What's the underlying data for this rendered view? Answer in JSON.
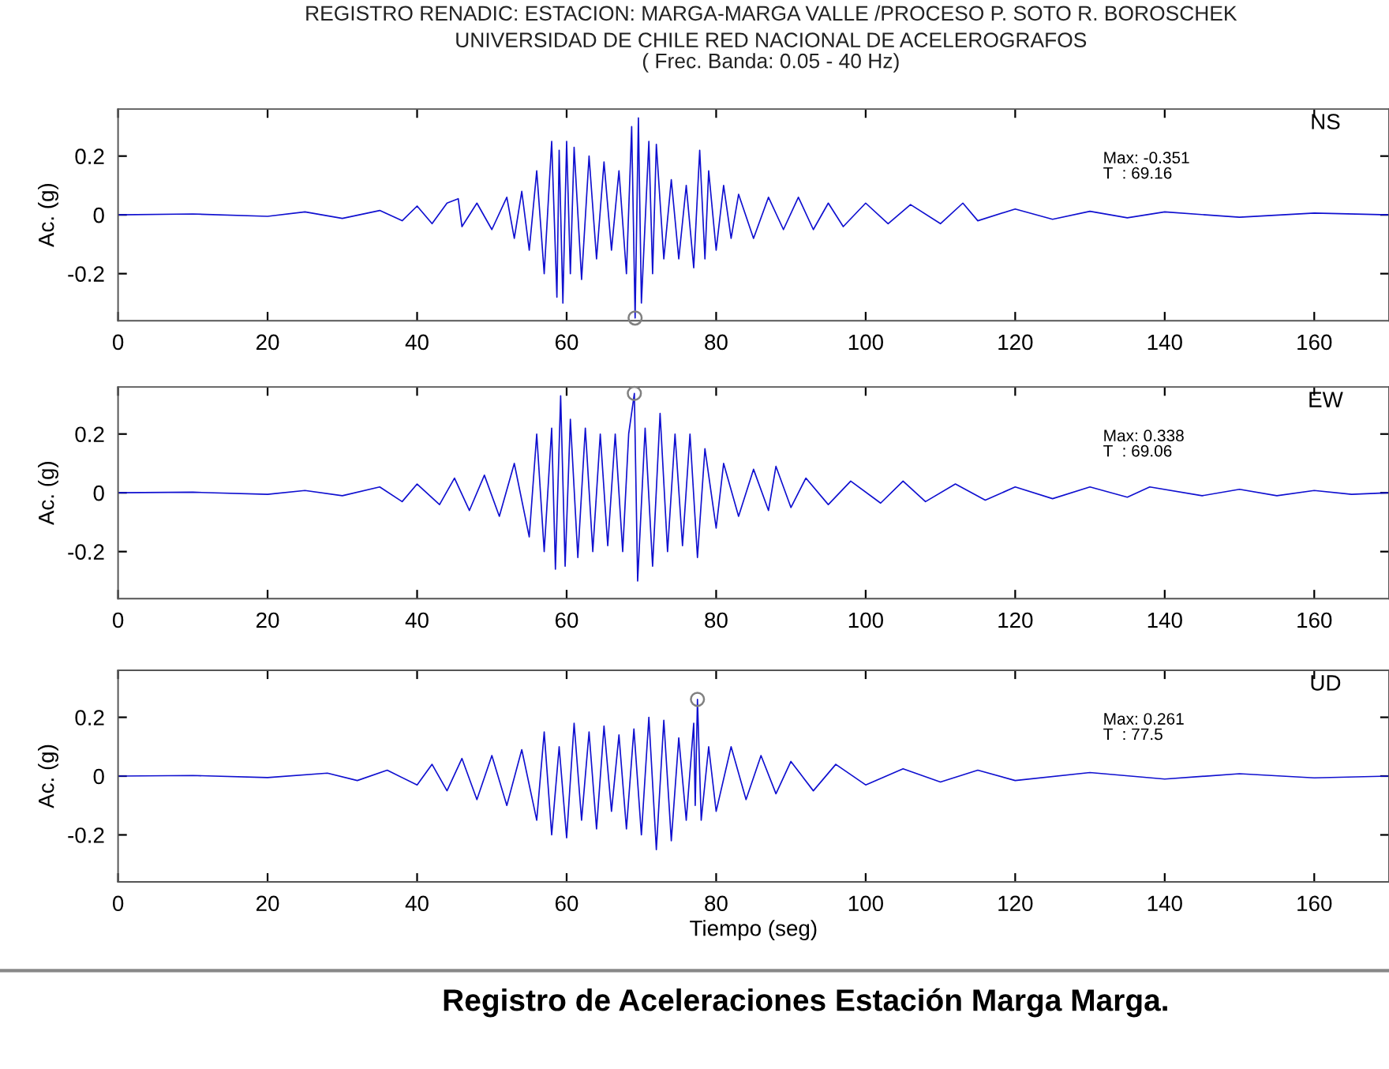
{
  "chart_data": [
    {
      "type": "line",
      "title": "REGISTRO RENADIC: ESTACION: MARGA-MARGA VALLE /PROCESO P. SOTO R. BOROSCHEK",
      "subtitle": "UNIVERSIDAD DE CHILE RED NACIONAL DE ACELEROGRAFOS\n( Frec. Banda: 0.05 - 40 Hz)",
      "ylabel": "Ac. (g)",
      "xlim": [
        0,
        170
      ],
      "ylim": [
        -0.36,
        0.36
      ],
      "xticks": [
        0,
        20,
        40,
        60,
        80,
        100,
        120,
        140,
        160
      ],
      "yticks": [
        -0.2,
        0,
        0.2
      ],
      "grid": false,
      "annotations": [
        "NS",
        "Max: -0.351\nT  : 69.16"
      ],
      "series": [
        {
          "color": "#1010d0",
          "x": [
            0,
            10,
            20,
            25,
            30,
            35,
            38,
            40,
            42,
            44,
            45.5,
            46,
            48,
            50,
            52,
            53,
            54,
            55,
            56,
            57,
            58,
            58.7,
            59,
            59.5,
            60,
            60.5,
            61,
            62,
            63,
            64,
            65,
            66,
            67,
            68,
            68.7,
            69.16,
            69.6,
            70,
            71,
            71.5,
            72,
            73,
            74,
            75,
            76,
            77,
            77.8,
            78.5,
            79,
            80,
            81,
            82,
            83,
            85,
            87,
            89,
            91,
            93,
            95,
            97,
            100,
            103,
            106,
            110,
            113,
            115,
            120,
            125,
            130,
            135,
            140,
            150,
            160,
            170
          ],
          "values": [
            0,
            0.003,
            -0.005,
            0.01,
            -0.012,
            0.015,
            -0.02,
            0.03,
            -0.03,
            0.04,
            0.055,
            -0.04,
            0.04,
            -0.05,
            0.06,
            -0.08,
            0.08,
            -0.12,
            0.15,
            -0.2,
            0.25,
            -0.28,
            0.22,
            -0.3,
            0.25,
            -0.2,
            0.23,
            -0.22,
            0.2,
            -0.15,
            0.18,
            -0.12,
            0.15,
            -0.2,
            0.3,
            -0.351,
            0.33,
            -0.3,
            0.25,
            -0.2,
            0.24,
            -0.15,
            0.12,
            -0.15,
            0.1,
            -0.18,
            0.22,
            -0.15,
            0.15,
            -0.12,
            0.1,
            -0.08,
            0.07,
            -0.08,
            0.06,
            -0.05,
            0.06,
            -0.05,
            0.04,
            -0.04,
            0.04,
            -0.03,
            0.035,
            -0.03,
            0.04,
            -0.02,
            0.02,
            -0.015,
            0.012,
            -0.01,
            0.01,
            -0.008,
            0.006,
            0
          ]
        },
        {
          "type": "scatter",
          "color": "#808080",
          "marker": "circle",
          "x": [
            69.16
          ],
          "values": [
            -0.351
          ]
        }
      ]
    },
    {
      "type": "line",
      "ylabel": "Ac. (g)",
      "xlim": [
        0,
        170
      ],
      "ylim": [
        -0.36,
        0.36
      ],
      "xticks": [
        0,
        20,
        40,
        60,
        80,
        100,
        120,
        140,
        160
      ],
      "yticks": [
        -0.2,
        0,
        0.2
      ],
      "grid": false,
      "annotations": [
        "EW",
        "Max: 0.338\nT  : 69.06"
      ],
      "series": [
        {
          "color": "#1010d0",
          "x": [
            0,
            10,
            20,
            25,
            30,
            35,
            38,
            40,
            43,
            45,
            47,
            49,
            51,
            53,
            55,
            56,
            57,
            58,
            58.5,
            59.2,
            59.8,
            60.5,
            61.5,
            62.5,
            63.5,
            64.5,
            65.5,
            66.5,
            67.5,
            68.3,
            69.06,
            69.5,
            70.5,
            71.5,
            72.5,
            73.5,
            74.5,
            75.5,
            76.5,
            77.5,
            78.5,
            80,
            81,
            83,
            85,
            87,
            88,
            90,
            92,
            95,
            98,
            102,
            105,
            108,
            112,
            116,
            120,
            125,
            130,
            135,
            138,
            145,
            150,
            155,
            160,
            165,
            170
          ],
          "values": [
            0,
            0.002,
            -0.005,
            0.008,
            -0.01,
            0.02,
            -0.03,
            0.03,
            -0.04,
            0.05,
            -0.06,
            0.06,
            -0.08,
            0.1,
            -0.15,
            0.2,
            -0.2,
            0.22,
            -0.26,
            0.33,
            -0.25,
            0.25,
            -0.22,
            0.22,
            -0.2,
            0.2,
            -0.18,
            0.2,
            -0.2,
            0.2,
            0.338,
            -0.3,
            0.22,
            -0.25,
            0.27,
            -0.2,
            0.2,
            -0.18,
            0.2,
            -0.22,
            0.15,
            -0.12,
            0.1,
            -0.08,
            0.08,
            -0.06,
            0.09,
            -0.05,
            0.05,
            -0.04,
            0.04,
            -0.035,
            0.04,
            -0.03,
            0.03,
            -0.025,
            0.02,
            -0.02,
            0.02,
            -0.015,
            0.02,
            -0.01,
            0.012,
            -0.01,
            0.008,
            -0.005,
            0
          ]
        },
        {
          "type": "scatter",
          "color": "#808080",
          "marker": "circle",
          "x": [
            69.06
          ],
          "values": [
            0.338
          ]
        }
      ]
    },
    {
      "type": "line",
      "xlabel": "Tiempo (seg)",
      "ylabel": "Ac. (g)",
      "xlim": [
        0,
        170
      ],
      "ylim": [
        -0.36,
        0.36
      ],
      "xticks": [
        0,
        20,
        40,
        60,
        80,
        100,
        120,
        140,
        160
      ],
      "yticks": [
        -0.2,
        0,
        0.2
      ],
      "grid": false,
      "annotations": [
        "UD",
        "Max: 0.261\nT  : 77.5",
        "Registro de Aceleraciones Estación Marga Marga."
      ],
      "series": [
        {
          "color": "#1010d0",
          "x": [
            0,
            10,
            20,
            28,
            32,
            36,
            40,
            42,
            44,
            46,
            48,
            50,
            52,
            54,
            56,
            57,
            58,
            59,
            60,
            61,
            62,
            63,
            64,
            65,
            66,
            67,
            68,
            69,
            70,
            71,
            72,
            73,
            74,
            75,
            76,
            77,
            77.2,
            77.5,
            78,
            79,
            80,
            82,
            84,
            86,
            88,
            90,
            93,
            96,
            100,
            105,
            110,
            115,
            120,
            130,
            140,
            150,
            160,
            170
          ],
          "values": [
            0,
            0.002,
            -0.005,
            0.01,
            -0.015,
            0.02,
            -0.03,
            0.04,
            -0.05,
            0.06,
            -0.08,
            0.07,
            -0.1,
            0.09,
            -0.15,
            0.15,
            -0.2,
            0.1,
            -0.21,
            0.18,
            -0.15,
            0.15,
            -0.18,
            0.17,
            -0.12,
            0.14,
            -0.18,
            0.16,
            -0.2,
            0.2,
            -0.25,
            0.19,
            -0.22,
            0.13,
            -0.15,
            0.18,
            -0.1,
            0.261,
            -0.15,
            0.1,
            -0.12,
            0.1,
            -0.08,
            0.07,
            -0.06,
            0.05,
            -0.05,
            0.04,
            -0.03,
            0.025,
            -0.02,
            0.02,
            -0.015,
            0.012,
            -0.01,
            0.008,
            -0.006,
            0
          ]
        },
        {
          "type": "scatter",
          "color": "#808080",
          "marker": "circle",
          "x": [
            77.5
          ],
          "values": [
            0.261
          ]
        }
      ]
    }
  ]
}
